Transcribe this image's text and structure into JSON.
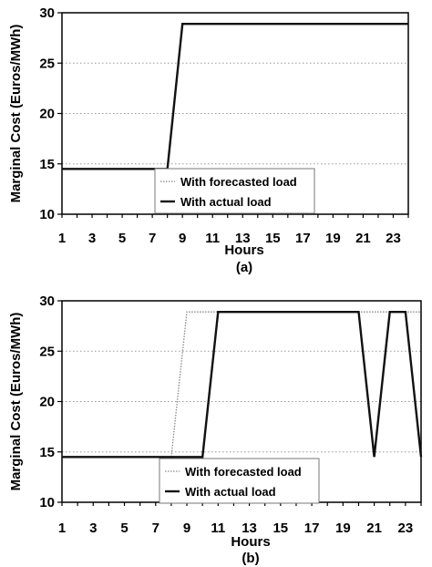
{
  "chart_data": [
    {
      "type": "line",
      "caption": "(a)",
      "xlabel": "Hours",
      "ylabel": "Marginal Cost (Euros/MWh)",
      "xlim": [
        1,
        24
      ],
      "ylim": [
        10,
        30
      ],
      "xticks": [
        1,
        3,
        5,
        7,
        9,
        11,
        13,
        15,
        17,
        19,
        21,
        23
      ],
      "yticks": [
        10,
        15,
        20,
        25,
        30
      ],
      "grid": "horizontal dotted",
      "legend_position": "bottom-center",
      "x": [
        1,
        2,
        3,
        4,
        5,
        6,
        7,
        8,
        9,
        10,
        11,
        12,
        13,
        14,
        15,
        16,
        17,
        18,
        19,
        20,
        21,
        22,
        23,
        24
      ],
      "series": [
        {
          "name": "With forecasted load",
          "style": "dotted",
          "color": "#888888",
          "values": [
            14.5,
            14.5,
            14.5,
            14.5,
            14.5,
            14.5,
            14.5,
            14.5,
            28.9,
            28.9,
            28.9,
            28.9,
            28.9,
            28.9,
            28.9,
            28.9,
            28.9,
            28.9,
            28.9,
            28.9,
            28.9,
            28.9,
            28.9,
            28.9
          ]
        },
        {
          "name": "With actual load",
          "style": "solid",
          "color": "#111111",
          "values": [
            14.5,
            14.5,
            14.5,
            14.5,
            14.5,
            14.5,
            14.5,
            14.5,
            28.9,
            28.9,
            28.9,
            28.9,
            28.9,
            28.9,
            28.9,
            28.9,
            28.9,
            28.9,
            28.9,
            28.9,
            28.9,
            28.9,
            28.9,
            28.9
          ]
        }
      ]
    },
    {
      "type": "line",
      "caption": "(b)",
      "xlabel": "Hours",
      "ylabel": "Marginal Cost (Euros/MWh)",
      "xlim": [
        1,
        24
      ],
      "ylim": [
        10,
        30
      ],
      "xticks": [
        1,
        3,
        5,
        7,
        9,
        11,
        13,
        15,
        17,
        19,
        21,
        23
      ],
      "yticks": [
        10,
        15,
        20,
        25,
        30
      ],
      "grid": "horizontal dotted",
      "legend_position": "bottom-center",
      "x": [
        1,
        2,
        3,
        4,
        5,
        6,
        7,
        8,
        9,
        10,
        11,
        12,
        13,
        14,
        15,
        16,
        17,
        18,
        19,
        20,
        21,
        22,
        23,
        24
      ],
      "series": [
        {
          "name": "With forecasted load",
          "style": "dotted",
          "color": "#888888",
          "values": [
            14.5,
            14.5,
            14.5,
            14.5,
            14.5,
            14.5,
            14.5,
            14.5,
            28.9,
            28.9,
            28.9,
            28.9,
            28.9,
            28.9,
            28.9,
            28.9,
            28.9,
            28.9,
            28.9,
            28.9,
            28.9,
            28.9,
            28.9,
            28.9
          ]
        },
        {
          "name": "With actual load",
          "style": "solid",
          "color": "#111111",
          "values": [
            14.5,
            14.5,
            14.5,
            14.5,
            14.5,
            14.5,
            14.5,
            14.5,
            14.5,
            14.5,
            28.9,
            28.9,
            28.9,
            28.9,
            28.9,
            28.9,
            28.9,
            28.9,
            28.9,
            28.9,
            14.5,
            28.9,
            28.9,
            14.5
          ]
        }
      ]
    }
  ]
}
